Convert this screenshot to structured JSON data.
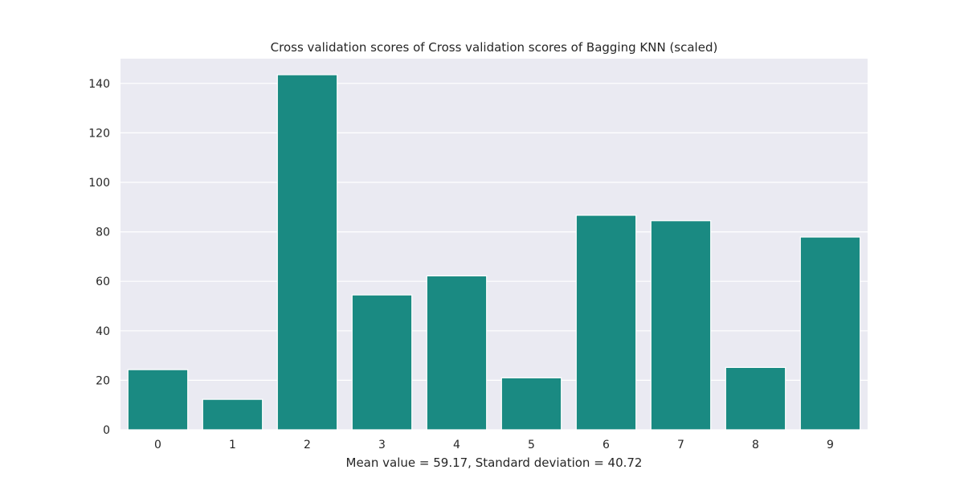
{
  "chart_data": {
    "type": "bar",
    "title": "Cross validation scores of Cross validation scores of Bagging KNN (scaled)",
    "xlabel": "Mean value = 59.17, Standard deviation = 40.72",
    "ylabel": "",
    "categories": [
      "0",
      "1",
      "2",
      "3",
      "4",
      "5",
      "6",
      "7",
      "8",
      "9"
    ],
    "values": [
      24.3,
      12.3,
      143.5,
      54.5,
      62.2,
      21.0,
      86.7,
      84.5,
      25.2,
      77.9
    ],
    "ylim": [
      0,
      150
    ],
    "yticks": [
      0,
      20,
      40,
      60,
      80,
      100,
      120,
      140
    ],
    "grid": true,
    "legend": "none",
    "colors": {
      "bar": "#1a8a82",
      "plot_background": "#eaeaf2",
      "grid": "#ffffff",
      "text": "#262626"
    }
  }
}
